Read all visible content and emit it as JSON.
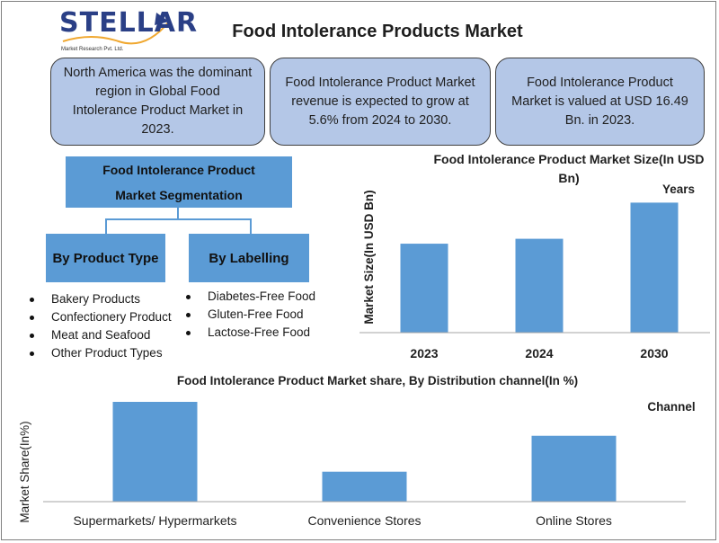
{
  "brand": {
    "logo_text": "STELLAR",
    "logo_tagline": "Market Research Pvt. Ltd."
  },
  "title": "Food Intolerance Products Market",
  "info_boxes": [
    "North America was the dominant region in Global Food Intolerance Product Market in 2023.",
    "Food Intolerance Product Market revenue is expected to grow at 5.6% from 2024 to 2030.",
    "Food Intolerance Product Market is valued at USD 16.49 Bn. in 2023."
  ],
  "segmentation": {
    "heading_line1": "Food Intolerance Product",
    "heading_line2": "Market Segmentation",
    "product_type": {
      "label": "By Product Type",
      "items": [
        "Bakery Products",
        "Confectionery Product",
        "Meat and Seafood",
        "Other Product Types"
      ]
    },
    "labelling": {
      "label": "By Labelling",
      "items": [
        "Diabetes-Free Food",
        "Gluten-Free Food",
        "Lactose-Free Food"
      ]
    }
  },
  "colors": {
    "bar": "#5b9bd5",
    "info_box": "#b4c7e7",
    "axis": "#a6a6a6",
    "logo": "#2a3f86"
  },
  "chart_data": [
    {
      "type": "bar",
      "title": "Food Intolerance Product Market Size(In USD Bn)",
      "xlabel": "Years",
      "ylabel": "Market Size(In USD Bn)",
      "categories": [
        "2023",
        "2024",
        "2030"
      ],
      "values": [
        16.49,
        17.4,
        24.1
      ],
      "ylim": [
        0,
        25
      ],
      "grid": false,
      "legend": "none"
    },
    {
      "type": "bar",
      "title": "Food Intolerance Product Market share, By Distribution channel(In %)",
      "xlabel": "Channel",
      "ylabel": "Market Share(In%)",
      "categories": [
        "Supermarkets/ Hypermarkets",
        "Convenience Stores",
        "Online Stores"
      ],
      "values": [
        50,
        15,
        33
      ],
      "ylim": [
        0,
        50
      ],
      "grid": false,
      "legend": "none"
    }
  ]
}
